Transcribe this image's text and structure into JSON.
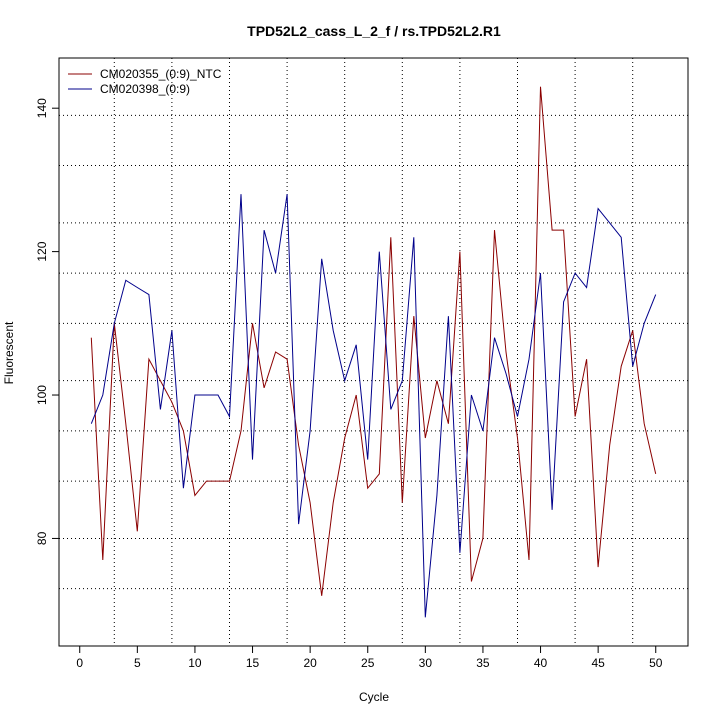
{
  "chart_data": {
    "type": "line",
    "title": "TPD52L2_cass_L_2_f / rs.TPD52L2.R1",
    "xlabel": "Cycle",
    "ylabel": "Fluorescent",
    "xlim": [
      -1.8,
      52.8
    ],
    "ylim": [
      65,
      147
    ],
    "x_ticks": [
      0,
      5,
      10,
      15,
      20,
      25,
      30,
      35,
      40,
      45,
      50
    ],
    "y_ticks": [
      80,
      100,
      120,
      140
    ],
    "v_grid": [
      3,
      8,
      13,
      18,
      23,
      28,
      33,
      38,
      43,
      48
    ],
    "h_grid": [
      73,
      80,
      88,
      95,
      102,
      110,
      117,
      124,
      132,
      139
    ],
    "legend_position": "top-left",
    "x": [
      1,
      2,
      3,
      4,
      5,
      6,
      7,
      8,
      9,
      10,
      11,
      12,
      13,
      14,
      15,
      16,
      17,
      18,
      19,
      20,
      21,
      22,
      23,
      24,
      25,
      26,
      27,
      28,
      29,
      30,
      31,
      32,
      33,
      34,
      35,
      36,
      37,
      38,
      39,
      40,
      41,
      42,
      43,
      44,
      45,
      46,
      47,
      48,
      49,
      50
    ],
    "series": [
      {
        "name": "CM020355_(0:9)_NTC",
        "color": "#8b0000",
        "values": [
          108,
          77,
          110,
          96,
          81,
          105,
          102,
          99,
          95,
          86,
          88,
          88,
          88,
          95,
          110,
          101,
          106,
          105,
          93,
          85,
          72,
          85,
          94,
          100,
          87,
          89,
          122,
          85,
          111,
          94,
          102,
          96,
          120,
          74,
          80,
          123,
          106,
          94,
          77,
          143,
          123,
          123,
          97,
          105,
          76,
          93,
          104,
          109,
          96,
          89
        ]
      },
      {
        "name": "CM020398_(0:9)",
        "color": "#00008b",
        "values": [
          96,
          100,
          110,
          116,
          115,
          114,
          98,
          109,
          87,
          100,
          100,
          100,
          97,
          128,
          91,
          123,
          117,
          128,
          82,
          95,
          119,
          109,
          102,
          107,
          91,
          120,
          98,
          102,
          122,
          69,
          86,
          111,
          78,
          100,
          95,
          108,
          103,
          97,
          105,
          117,
          84,
          113,
          117,
          115,
          126,
          124,
          122,
          104,
          110,
          114
        ]
      }
    ]
  }
}
